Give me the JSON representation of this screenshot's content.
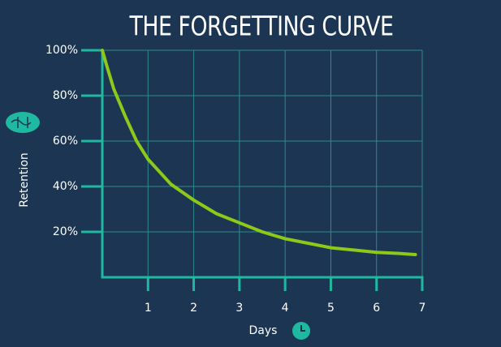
{
  "chart_data": {
    "type": "line",
    "title": "THE FORGETTING CURVE",
    "x_label": "Days",
    "y_label": "Retention",
    "x": [
      0,
      0.1,
      0.25,
      0.5,
      0.75,
      1,
      1.5,
      2,
      2.5,
      3,
      3.5,
      4,
      4.5,
      5,
      5.5,
      6,
      6.5,
      6.85
    ],
    "values": [
      100,
      93,
      83,
      71,
      60,
      52,
      41,
      34,
      28,
      24,
      20,
      17,
      15,
      13,
      12,
      11,
      10.5,
      10
    ],
    "color": "#8cc919",
    "xlim": [
      0,
      7
    ],
    "xticks": [
      1,
      2,
      3,
      4,
      5,
      6,
      7
    ],
    "ylim": [
      0,
      100
    ],
    "yticks": [
      {
        "value": 20,
        "label": "20%"
      },
      {
        "value": 40,
        "label": "40%"
      },
      {
        "value": 60,
        "label": "60%"
      },
      {
        "value": 80,
        "label": "80%"
      },
      {
        "value": 100,
        "label": "100%"
      }
    ],
    "grid": true
  }
}
